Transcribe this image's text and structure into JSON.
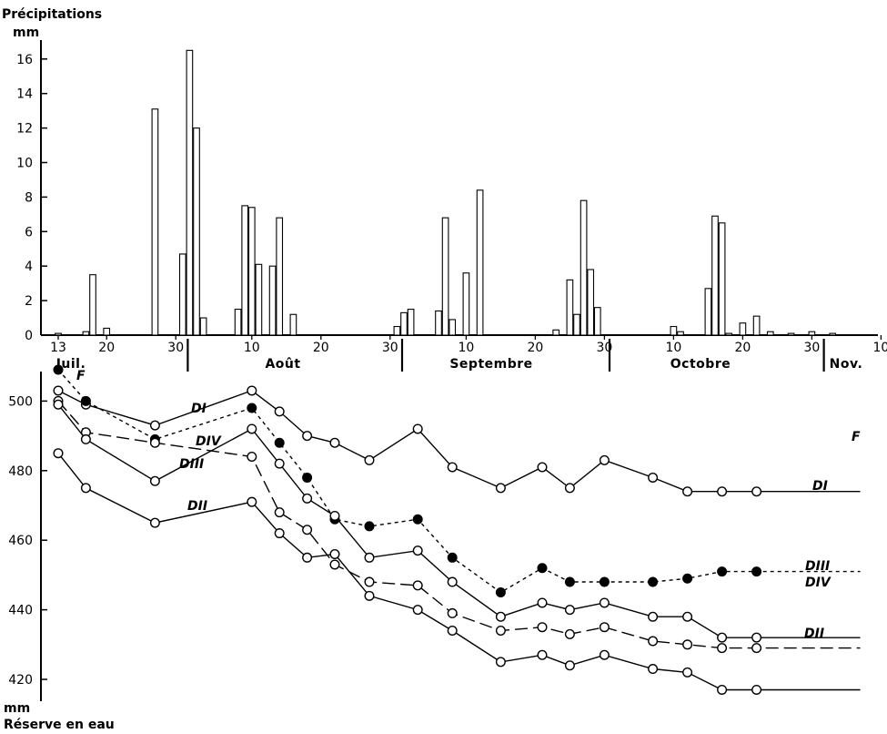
{
  "chart_data": [
    {
      "type": "bar",
      "ylabel": "Précipitations",
      "yunit": "mm",
      "ylim": [
        0,
        17
      ],
      "yticks": [
        0,
        2,
        4,
        6,
        8,
        10,
        12,
        14,
        16
      ],
      "x_start_label": "13 Juil.",
      "xtick_labels": [
        "13",
        "20",
        "30",
        "10",
        "20",
        "30",
        "10",
        "20",
        "30",
        "10",
        "20",
        "30",
        "10"
      ],
      "month_labels": [
        "Juil.",
        "Août",
        "Septembre",
        "Octobre",
        "Nov."
      ],
      "bar_color": "#ffffff",
      "bars": [
        {
          "day": 1,
          "value": 0.1
        },
        {
          "day": 5,
          "value": 0.2
        },
        {
          "day": 6,
          "value": 3.5
        },
        {
          "day": 8,
          "value": 0.4
        },
        {
          "day": 15,
          "value": 13.1
        },
        {
          "day": 19,
          "value": 4.7
        },
        {
          "day": 20,
          "value": 16.5
        },
        {
          "day": 21,
          "value": 12.0
        },
        {
          "day": 22,
          "value": 1.0
        },
        {
          "day": 27,
          "value": 1.5
        },
        {
          "day": 28,
          "value": 7.5
        },
        {
          "day": 29,
          "value": 7.4
        },
        {
          "day": 30,
          "value": 4.1
        },
        {
          "day": 32,
          "value": 4.0
        },
        {
          "day": 33,
          "value": 6.8
        },
        {
          "day": 35,
          "value": 1.2
        },
        {
          "day": 50,
          "value": 0.5
        },
        {
          "day": 51,
          "value": 1.3
        },
        {
          "day": 52,
          "value": 1.5
        },
        {
          "day": 56,
          "value": 1.4
        },
        {
          "day": 57,
          "value": 6.8
        },
        {
          "day": 58,
          "value": 0.9
        },
        {
          "day": 60,
          "value": 3.6
        },
        {
          "day": 62,
          "value": 8.4
        },
        {
          "day": 73,
          "value": 0.3
        },
        {
          "day": 75,
          "value": 3.2
        },
        {
          "day": 76,
          "value": 1.2
        },
        {
          "day": 77,
          "value": 7.8
        },
        {
          "day": 78,
          "value": 3.8
        },
        {
          "day": 79,
          "value": 1.6
        },
        {
          "day": 90,
          "value": 0.5
        },
        {
          "day": 91,
          "value": 0.2
        },
        {
          "day": 95,
          "value": 2.7
        },
        {
          "day": 96,
          "value": 6.9
        },
        {
          "day": 97,
          "value": 6.5
        },
        {
          "day": 98,
          "value": 0.1
        },
        {
          "day": 100,
          "value": 0.7
        },
        {
          "day": 102,
          "value": 1.1
        },
        {
          "day": 104,
          "value": 0.2
        },
        {
          "day": 107,
          "value": 0.1
        },
        {
          "day": 110,
          "value": 0.2
        },
        {
          "day": 113,
          "value": 0.1
        }
      ]
    },
    {
      "type": "line",
      "ylabel": "Réserve en eau",
      "yunit": "mm",
      "ylim": [
        412,
        512
      ],
      "yticks": [
        420,
        440,
        460,
        480,
        500
      ],
      "x_days": [
        1,
        5,
        15,
        29,
        33,
        37,
        41,
        46,
        53,
        58,
        65,
        71,
        75,
        80,
        87,
        92,
        97,
        102,
        117
      ],
      "series": [
        {
          "name": "DI",
          "style": "solid",
          "marker": "open",
          "values": [
            503,
            499,
            493,
            503,
            497,
            490,
            488,
            483,
            492,
            481,
            475,
            481,
            475,
            483,
            478,
            474,
            474,
            474,
            474
          ]
        },
        {
          "name": "F",
          "style": "dotted",
          "marker": "filled",
          "values": [
            509,
            500,
            489,
            498,
            488,
            478,
            466,
            464,
            466,
            455,
            445,
            452,
            448,
            448,
            448,
            449,
            451,
            451,
            451
          ]
        },
        {
          "name": "DIV",
          "style": "dashed",
          "marker": "open",
          "values": [
            500,
            491,
            488,
            484,
            468,
            463,
            453,
            448,
            447,
            439,
            434,
            435,
            433,
            435,
            431,
            430,
            429,
            429,
            429
          ]
        },
        {
          "name": "DIII",
          "style": "solid",
          "marker": "open",
          "values": [
            499,
            489,
            477,
            492,
            482,
            472,
            467,
            455,
            457,
            448,
            438,
            442,
            440,
            442,
            438,
            438,
            432,
            432,
            432
          ]
        },
        {
          "name": "DII",
          "style": "solid",
          "marker": "open",
          "values": [
            485,
            475,
            465,
            471,
            462,
            455,
            456,
            444,
            440,
            434,
            425,
            427,
            424,
            427,
            423,
            422,
            417,
            417,
            417
          ]
        }
      ]
    }
  ]
}
